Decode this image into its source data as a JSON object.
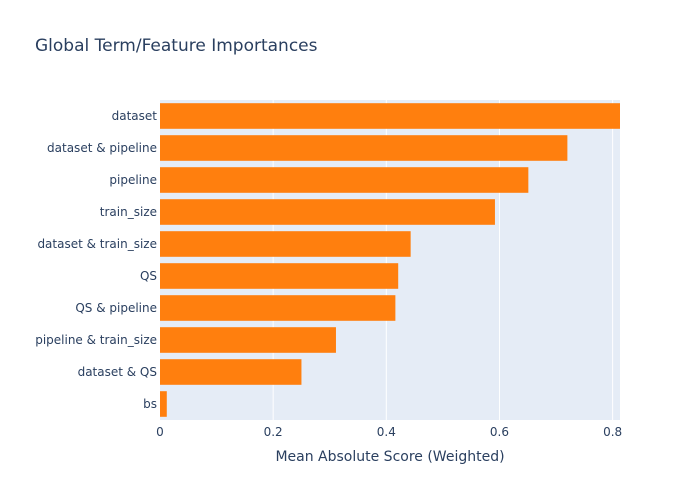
{
  "chart_data": {
    "type": "bar",
    "orientation": "horizontal",
    "title": "Global Term/Feature Importances",
    "xlabel": "Mean Absolute Score (Weighted)",
    "ylabel": "",
    "categories": [
      "dataset",
      "dataset & pipeline",
      "pipeline",
      "train_size",
      "dataset & train_size",
      "QS",
      "QS & pipeline",
      "pipeline & train_size",
      "dataset & QS",
      "bs"
    ],
    "values": [
      0.813,
      0.72,
      0.651,
      0.592,
      0.443,
      0.421,
      0.416,
      0.311,
      0.25,
      0.012
    ],
    "xlim": [
      0,
      0.813
    ],
    "xticks": [
      0,
      0.2,
      0.4,
      0.6,
      0.8
    ],
    "xtick_labels": [
      "0",
      "0.2",
      "0.4",
      "0.6",
      "0.8"
    ],
    "grid": true,
    "legend": "none",
    "colors": {
      "bar": "#ff7f0e",
      "plot_background": "#e5ecf6",
      "grid": "#ffffff",
      "text": "#2a3f5f"
    }
  }
}
